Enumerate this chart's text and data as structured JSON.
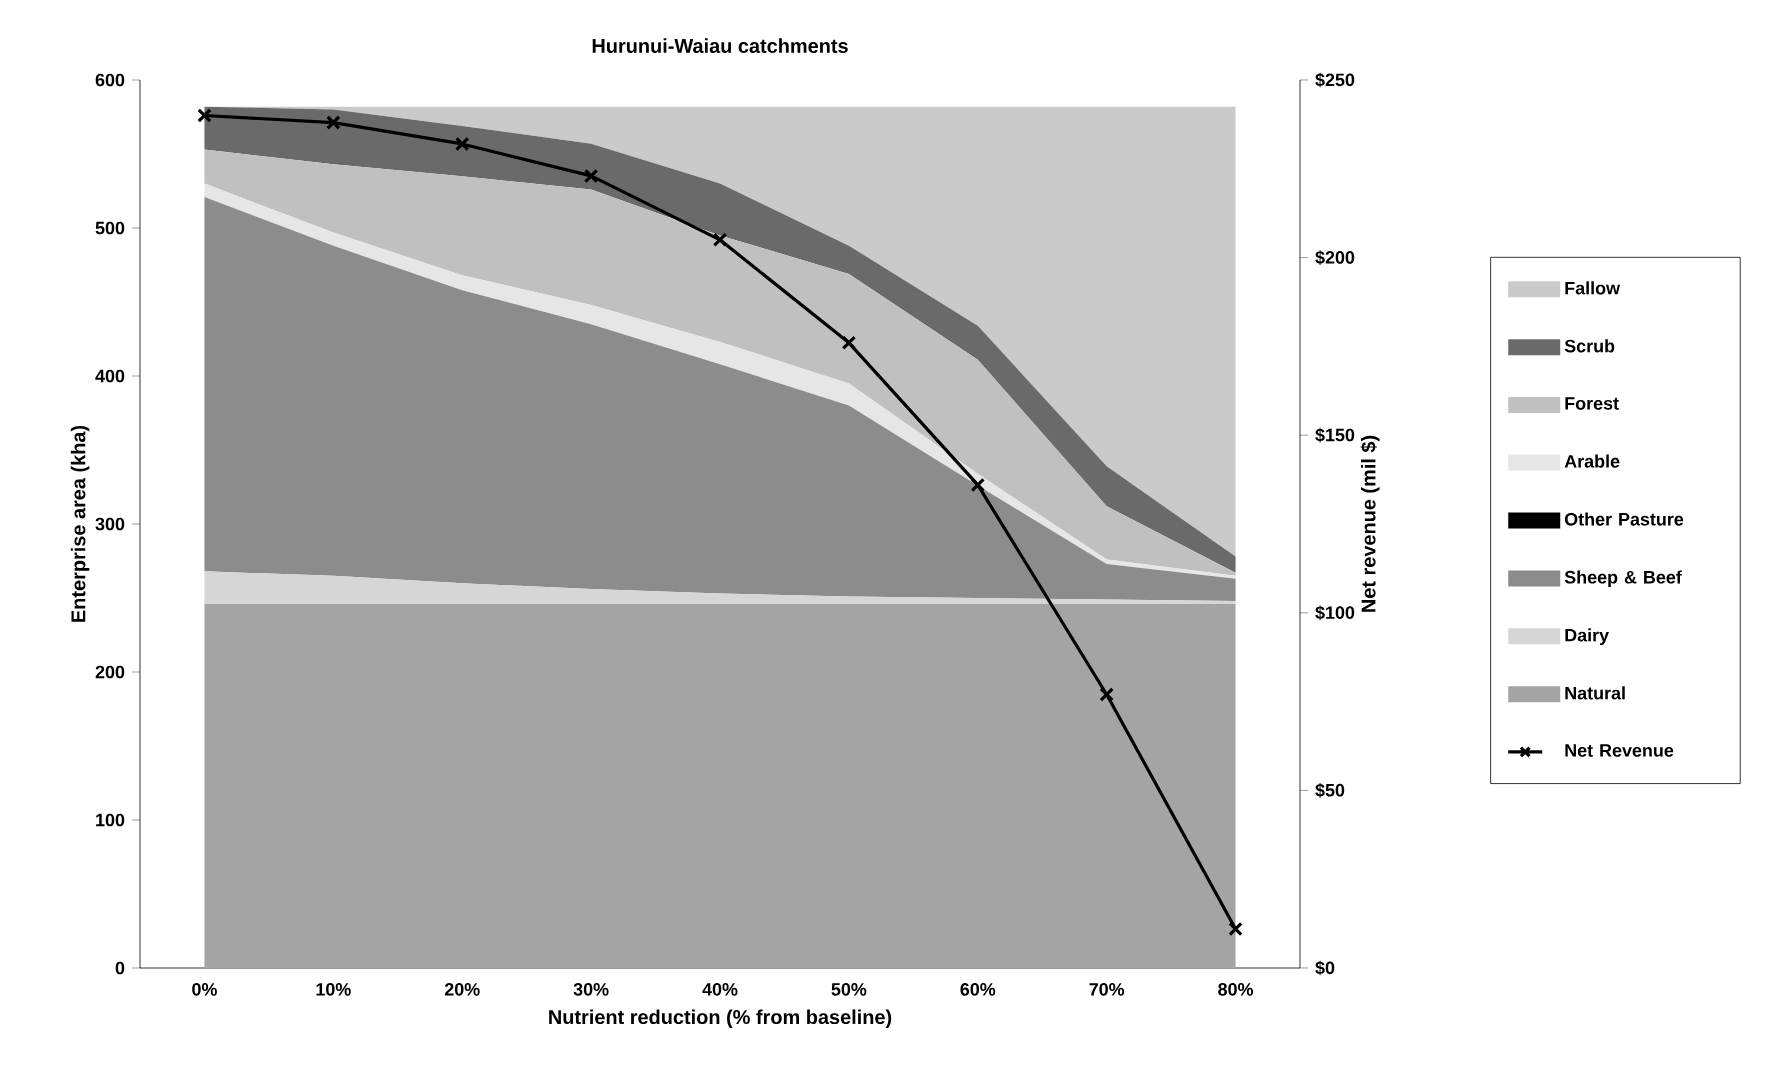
{
  "chart_data": {
    "type": "area",
    "title": "Hurunui-Waiau catchments",
    "xlabel": "Nutrient reduction (% from baseline)",
    "ylabel": "Enterprise area (kha)",
    "y2label": "Net revenue (mil $)",
    "categories": [
      "0%",
      "10%",
      "20%",
      "30%",
      "40%",
      "50%",
      "60%",
      "70%",
      "80%"
    ],
    "stacked": true,
    "legend": "right",
    "ylim": [
      0,
      600
    ],
    "yticks": [
      0,
      100,
      200,
      300,
      400,
      500,
      600
    ],
    "y2lim": [
      0,
      250
    ],
    "y2ticks": [
      {
        "value": 0,
        "label": "$0"
      },
      {
        "value": 50,
        "label": "$50"
      },
      {
        "value": 100,
        "label": "$100"
      },
      {
        "value": 150,
        "label": "$150"
      },
      {
        "value": 200,
        "label": "$200"
      },
      {
        "value": 250,
        "label": "$250"
      }
    ],
    "series": [
      {
        "name": "Natural",
        "color": "#a4a4a4",
        "values": [
          246,
          246,
          246,
          246,
          246,
          246,
          246,
          246,
          246
        ]
      },
      {
        "name": "Dairy",
        "color": "#d6d6d6",
        "values": [
          22,
          19,
          14,
          10,
          7,
          5,
          4,
          3,
          2
        ]
      },
      {
        "name": "Sheep & Beef",
        "color": "#8c8c8c",
        "values": [
          253,
          223,
          198,
          179,
          155,
          129,
          76,
          24,
          15
        ]
      },
      {
        "name": "Other Pasture",
        "color": "#000000",
        "values": [
          null,
          null,
          null,
          null,
          null,
          null,
          null,
          null,
          null
        ]
      },
      {
        "name": "Arable",
        "color": "#e6e6e6",
        "values": [
          9,
          9,
          10,
          13,
          15,
          15,
          8,
          3,
          2
        ]
      },
      {
        "name": "Forest",
        "color": "#c0c0c0",
        "values": [
          23,
          46,
          67,
          78,
          72,
          74,
          77,
          36,
          2
        ]
      },
      {
        "name": "Scrub",
        "color": "#6a6a6a",
        "values": [
          29,
          37,
          34,
          31,
          35,
          19,
          23,
          27,
          11
        ]
      },
      {
        "name": "Fallow",
        "color": "#cacaca",
        "values": [
          0,
          2,
          13,
          25,
          52,
          94,
          148,
          243,
          304
        ]
      },
      {
        "name": "Net Revenue",
        "type": "line",
        "axis": "y2",
        "marker": "cross",
        "color": "#000000",
        "values": [
          240,
          238,
          232,
          223,
          205,
          176,
          136,
          77,
          11
        ]
      }
    ]
  }
}
